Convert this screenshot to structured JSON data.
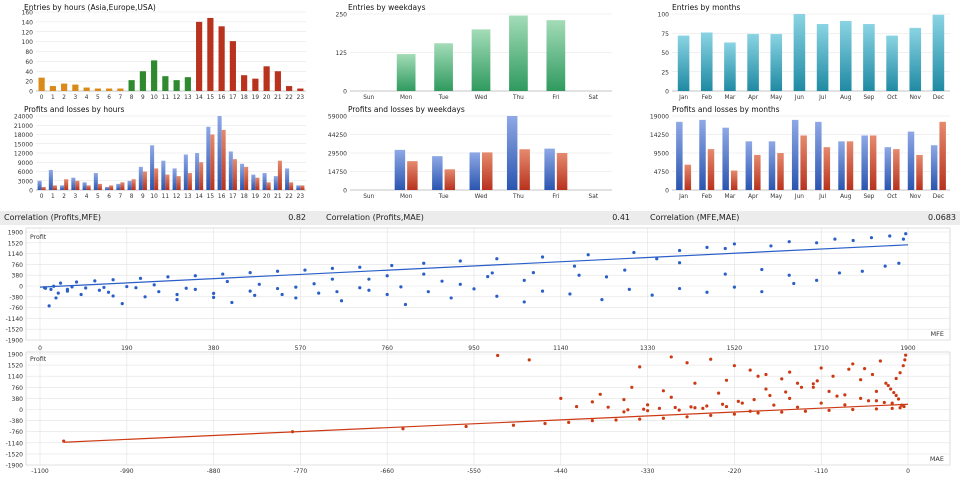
{
  "colors": {
    "orange": "#d98a1a",
    "green": "#2f8a2f",
    "red": "#b8321e",
    "redLight": "#e58a6e",
    "blue": "#2a55b0",
    "blueLight": "#8fa8e6",
    "teal": "#1f8aa3",
    "tealLight": "#8ad4e3",
    "greenBarDark": "#2f9a5e",
    "greenBarLight": "#a3dcb8",
    "scatterBlue": "#2a5fc8",
    "scatterRed": "#cc3a14",
    "grid": "#e2e2e2",
    "frame": "#c8c8c8"
  },
  "correlations": [
    {
      "label": "Correlation (Profits,MFE)",
      "value": "0.82"
    },
    {
      "label": "Correlation (Profits,MAE)",
      "value": "0.41"
    },
    {
      "label": "Correlation (MFE,MAE)",
      "value": "0.0683"
    }
  ],
  "chart_data": [
    {
      "id": "entries_hours",
      "type": "bar",
      "title": "Entries by hours (Asia,Europe,USA)",
      "categories": [
        "0",
        "1",
        "2",
        "3",
        "4",
        "5",
        "6",
        "7",
        "8",
        "9",
        "10",
        "11",
        "12",
        "13",
        "14",
        "15",
        "16",
        "17",
        "18",
        "19",
        "20",
        "21",
        "22",
        "23"
      ],
      "values": [
        27,
        10,
        15,
        13,
        7,
        5,
        5,
        5,
        22,
        40,
        62,
        30,
        22,
        28,
        140,
        148,
        131,
        101,
        32,
        25,
        50,
        40,
        10,
        5
      ],
      "session": [
        "asia",
        "asia",
        "asia",
        "asia",
        "asia",
        "asia",
        "asia",
        "asia",
        "europe",
        "europe",
        "europe",
        "europe",
        "europe",
        "europe",
        "usa",
        "usa",
        "usa",
        "usa",
        "usa",
        "usa",
        "usa",
        "usa",
        "usa",
        "usa"
      ],
      "yticks": [
        0,
        20,
        40,
        60,
        80,
        100,
        120,
        140,
        160
      ],
      "ylim": [
        0,
        160
      ]
    },
    {
      "id": "entries_weekdays",
      "type": "bar",
      "title": "Entries by weekdays",
      "categories": [
        "Sun",
        "Mon",
        "Tue",
        "Wed",
        "Thu",
        "Fri",
        "Sat"
      ],
      "values": [
        0,
        120,
        155,
        200,
        245,
        230,
        0
      ],
      "yticks": [
        0,
        125,
        250
      ],
      "ylim": [
        0,
        250
      ]
    },
    {
      "id": "entries_months",
      "type": "bar",
      "title": "Entries by months",
      "categories": [
        "Jan",
        "Feb",
        "Mar",
        "Apr",
        "May",
        "Jun",
        "Jul",
        "Aug",
        "Sep",
        "Oct",
        "Nov",
        "Dec"
      ],
      "values": [
        72,
        76,
        63,
        74,
        74,
        100,
        87,
        91,
        87,
        72,
        82,
        99
      ],
      "yticks": [
        0,
        25,
        50,
        75,
        100
      ],
      "ylim": [
        0,
        100
      ]
    },
    {
      "id": "pl_hours",
      "type": "bar",
      "title": "Profits and losses by hours",
      "categories": [
        "0",
        "1",
        "2",
        "3",
        "4",
        "5",
        "6",
        "7",
        "8",
        "9",
        "10",
        "11",
        "12",
        "13",
        "14",
        "15",
        "16",
        "17",
        "18",
        "19",
        "20",
        "21",
        "22",
        "23"
      ],
      "series": [
        {
          "name": "Profits",
          "values": [
            3000,
            6500,
            1500,
            4000,
            2500,
            5500,
            1000,
            2000,
            3000,
            7500,
            14500,
            9500,
            7000,
            11500,
            12000,
            20500,
            24000,
            12500,
            8500,
            5000,
            5500,
            4500,
            7000,
            1500
          ]
        },
        {
          "name": "Losses",
          "values": [
            1000,
            1500,
            3500,
            3000,
            1500,
            2000,
            1500,
            2500,
            3500,
            6000,
            7000,
            5000,
            4500,
            5500,
            9000,
            18000,
            19500,
            10000,
            7500,
            4000,
            2500,
            9500,
            2500,
            1500
          ]
        }
      ],
      "yticks": [
        0,
        3000,
        6000,
        9000,
        12000,
        15000,
        18000,
        21000,
        24000
      ],
      "ylim": [
        0,
        24000
      ]
    },
    {
      "id": "pl_weekdays",
      "type": "bar",
      "title": "Profits and losses by weekdays",
      "categories": [
        "Sun",
        "Mon",
        "Tue",
        "Wed",
        "Thu",
        "Fri",
        "Sat"
      ],
      "series": [
        {
          "name": "Profits",
          "values": [
            0,
            32000,
            27000,
            30000,
            59000,
            33000,
            0
          ]
        },
        {
          "name": "Losses",
          "values": [
            0,
            23000,
            16500,
            30000,
            32500,
            29500,
            0
          ]
        }
      ],
      "yticks": [
        0,
        14750,
        29500,
        44250,
        59000
      ],
      "ylim": [
        0,
        59000
      ]
    },
    {
      "id": "pl_months",
      "type": "bar",
      "title": "Profits and losses by months",
      "categories": [
        "Jan",
        "Feb",
        "Mar",
        "Apr",
        "May",
        "Jun",
        "Jul",
        "Aug",
        "Sep",
        "Oct",
        "Nov",
        "Dec"
      ],
      "series": [
        {
          "name": "Profits",
          "values": [
            17500,
            18000,
            16000,
            12500,
            12500,
            18000,
            17500,
            12500,
            14000,
            11000,
            15000,
            11500
          ]
        },
        {
          "name": "Losses",
          "values": [
            6500,
            10500,
            5000,
            9000,
            9500,
            14000,
            11000,
            12500,
            14000,
            10500,
            9000,
            17500
          ]
        }
      ],
      "yticks": [
        0,
        4750,
        9500,
        14250,
        19000
      ],
      "ylim": [
        0,
        19000
      ]
    },
    {
      "id": "scatter_mfe",
      "type": "scatter",
      "ylabel": "Profit",
      "xlabel": "MFE",
      "xticks": [
        0,
        190,
        380,
        570,
        760,
        950,
        1140,
        1330,
        1520,
        1710,
        1900
      ],
      "yticks": [
        -1900,
        -1520,
        -1140,
        -760,
        -380,
        0,
        380,
        760,
        1140,
        1520,
        1900
      ],
      "xlim": [
        0,
        1900
      ],
      "ylim": [
        -1900,
        1900
      ],
      "trend": [
        [
          0,
          -40
        ],
        [
          1900,
          1450
        ]
      ],
      "points": [
        [
          12,
          -80
        ],
        [
          40,
          -250
        ],
        [
          60,
          -120
        ],
        [
          90,
          -300
        ],
        [
          35,
          -420
        ],
        [
          20,
          -700
        ],
        [
          130,
          -150
        ],
        [
          160,
          -350
        ],
        [
          180,
          -620
        ],
        [
          210,
          -60
        ],
        [
          260,
          -200
        ],
        [
          300,
          -480
        ],
        [
          340,
          -120
        ],
        [
          380,
          -260
        ],
        [
          420,
          -580
        ],
        [
          470,
          -330
        ],
        [
          520,
          -90
        ],
        [
          560,
          -420
        ],
        [
          610,
          -250
        ],
        [
          660,
          -520
        ],
        [
          720,
          -150
        ],
        [
          760,
          -300
        ],
        [
          800,
          -650
        ],
        [
          850,
          -200
        ],
        [
          900,
          -420
        ],
        [
          950,
          -100
        ],
        [
          1000,
          -360
        ],
        [
          1060,
          -560
        ],
        [
          1100,
          -180
        ],
        [
          1160,
          -280
        ],
        [
          1230,
          -480
        ],
        [
          1290,
          -120
        ],
        [
          1340,
          -320
        ],
        [
          1400,
          -90
        ],
        [
          1460,
          -220
        ],
        [
          1520,
          -40
        ],
        [
          1580,
          -200
        ],
        [
          1650,
          90
        ],
        [
          1700,
          200
        ],
        [
          1750,
          460
        ],
        [
          1800,
          520
        ],
        [
          1850,
          700
        ],
        [
          1880,
          800
        ],
        [
          1890,
          1650
        ],
        [
          1895,
          1840
        ],
        [
          1860,
          1760
        ],
        [
          1820,
          1700
        ],
        [
          1780,
          1600
        ],
        [
          1700,
          1520
        ],
        [
          1600,
          1410
        ],
        [
          1500,
          1320
        ],
        [
          1400,
          1250
        ],
        [
          1300,
          1180
        ],
        [
          1200,
          1100
        ],
        [
          1100,
          1020
        ],
        [
          1000,
          960
        ],
        [
          920,
          880
        ],
        [
          840,
          800
        ],
        [
          770,
          720
        ],
        [
          700,
          660
        ],
        [
          640,
          620
        ],
        [
          580,
          560
        ],
        [
          520,
          520
        ],
        [
          460,
          470
        ],
        [
          400,
          420
        ],
        [
          340,
          360
        ],
        [
          280,
          320
        ],
        [
          220,
          270
        ],
        [
          160,
          220
        ],
        [
          120,
          180
        ],
        [
          80,
          140
        ],
        [
          45,
          100
        ],
        [
          1500,
          420
        ],
        [
          1400,
          820
        ],
        [
          1280,
          560
        ],
        [
          1180,
          380
        ],
        [
          1080,
          470
        ],
        [
          980,
          330
        ],
        [
          880,
          170
        ],
        [
          790,
          -30
        ],
        [
          700,
          -60
        ],
        [
          640,
          240
        ],
        [
          560,
          -40
        ],
        [
          480,
          60
        ],
        [
          410,
          160
        ],
        [
          320,
          -80
        ],
        [
          250,
          40
        ],
        [
          190,
          -20
        ],
        [
          140,
          -50
        ],
        [
          100,
          -70
        ],
        [
          70,
          -30
        ],
        [
          30,
          -10
        ],
        [
          1520,
          1480
        ],
        [
          1640,
          1560
        ],
        [
          1740,
          1650
        ],
        [
          1640,
          380
        ],
        [
          1580,
          580
        ],
        [
          1460,
          1360
        ],
        [
          1350,
          960
        ],
        [
          1240,
          320
        ],
        [
          1170,
          700
        ],
        [
          1060,
          200
        ],
        [
          990,
          460
        ],
        [
          920,
          60
        ],
        [
          840,
          420
        ],
        [
          760,
          360
        ],
        [
          720,
          240
        ],
        [
          650,
          -200
        ],
        [
          600,
          80
        ],
        [
          530,
          -300
        ],
        [
          460,
          -180
        ],
        [
          380,
          -400
        ],
        [
          300,
          -300
        ],
        [
          230,
          -380
        ],
        [
          150,
          -220
        ],
        [
          60,
          -180
        ],
        [
          24,
          -120
        ],
        [
          10,
          -60
        ]
      ]
    },
    {
      "id": "scatter_mae",
      "type": "scatter",
      "ylabel": "Profit",
      "xlabel": "MAE",
      "xticks": [
        -1100,
        -990,
        -880,
        -770,
        -660,
        -550,
        -440,
        -330,
        -220,
        -110,
        0
      ],
      "yticks": [
        -1900,
        -1520,
        -1140,
        -760,
        -380,
        0,
        380,
        760,
        1140,
        1520,
        1900
      ],
      "xlim": [
        -1100,
        0
      ],
      "ylim": [
        -1900,
        1900
      ],
      "trend": [
        [
          -1070,
          -1120
        ],
        [
          0,
          180
        ]
      ],
      "points": [
        [
          -1070,
          -1080
        ],
        [
          -780,
          -760
        ],
        [
          -640,
          -660
        ],
        [
          -560,
          -580
        ],
        [
          -500,
          -540
        ],
        [
          -460,
          -480
        ],
        [
          -430,
          -440
        ],
        [
          -400,
          -380
        ],
        [
          -370,
          -360
        ],
        [
          -340,
          -330
        ],
        [
          -310,
          -300
        ],
        [
          -280,
          -250
        ],
        [
          -250,
          -200
        ],
        [
          -220,
          -160
        ],
        [
          -190,
          -120
        ],
        [
          -160,
          -90
        ],
        [
          -130,
          -60
        ],
        [
          -100,
          -30
        ],
        [
          -70,
          0
        ],
        [
          -40,
          20
        ],
        [
          -20,
          40
        ],
        [
          -10,
          60
        ],
        [
          -5,
          100
        ],
        [
          -480,
          1700
        ],
        [
          -520,
          1850
        ],
        [
          -300,
          1800
        ],
        [
          -340,
          1460
        ],
        [
          -280,
          1600
        ],
        [
          -250,
          1720
        ],
        [
          -220,
          1500
        ],
        [
          -200,
          1350
        ],
        [
          -180,
          1200
        ],
        [
          -160,
          1050
        ],
        [
          -140,
          900
        ],
        [
          -120,
          760
        ],
        [
          -100,
          620
        ],
        [
          -80,
          500
        ],
        [
          -60,
          380
        ],
        [
          -40,
          300
        ],
        [
          -20,
          220
        ],
        [
          -8,
          150
        ],
        [
          -420,
          100
        ],
        [
          -400,
          260
        ],
        [
          -380,
          80
        ],
        [
          -360,
          340
        ],
        [
          -330,
          160
        ],
        [
          -300,
          420
        ],
        [
          -270,
          60
        ],
        [
          -240,
          560
        ],
        [
          -210,
          220
        ],
        [
          -180,
          700
        ],
        [
          -150,
          380
        ],
        [
          -120,
          880
        ],
        [
          -90,
          460
        ],
        [
          -60,
          1020
        ],
        [
          -40,
          620
        ],
        [
          -25,
          820
        ],
        [
          -15,
          1060
        ],
        [
          -10,
          1260
        ],
        [
          -6,
          1500
        ],
        [
          -4,
          1700
        ],
        [
          -3,
          1860
        ],
        [
          -360,
          -80
        ],
        [
          -330,
          -40
        ],
        [
          -290,
          -20
        ],
        [
          -260,
          40
        ],
        [
          -230,
          100
        ],
        [
          -200,
          -60
        ],
        [
          -170,
          150
        ],
        [
          -140,
          80
        ],
        [
          -110,
          220
        ],
        [
          -80,
          160
        ],
        [
          -50,
          300
        ],
        [
          -30,
          240
        ],
        [
          -440,
          380
        ],
        [
          -390,
          520
        ],
        [
          -350,
          760
        ],
        [
          -310,
          640
        ],
        [
          -270,
          900
        ],
        [
          -230,
          1000
        ],
        [
          -190,
          1140
        ],
        [
          -150,
          1280
        ],
        [
          -110,
          1420
        ],
        [
          -70,
          1560
        ],
        [
          -35,
          1660
        ],
        [
          -15,
          480
        ],
        [
          -12,
          360
        ],
        [
          -18,
          580
        ],
        [
          -22,
          700
        ],
        [
          -28,
          900
        ],
        [
          -45,
          1200
        ],
        [
          -55,
          1400
        ],
        [
          -75,
          1380
        ],
        [
          -95,
          1140
        ],
        [
          -115,
          980
        ],
        [
          -135,
          760
        ],
        [
          -155,
          600
        ],
        [
          -175,
          480
        ],
        [
          -195,
          340
        ],
        [
          -215,
          280
        ],
        [
          -235,
          180
        ],
        [
          -255,
          120
        ],
        [
          -275,
          90
        ],
        [
          -295,
          70
        ],
        [
          -315,
          40
        ],
        [
          -335,
          10
        ],
        [
          -355,
          -10
        ]
      ]
    }
  ]
}
